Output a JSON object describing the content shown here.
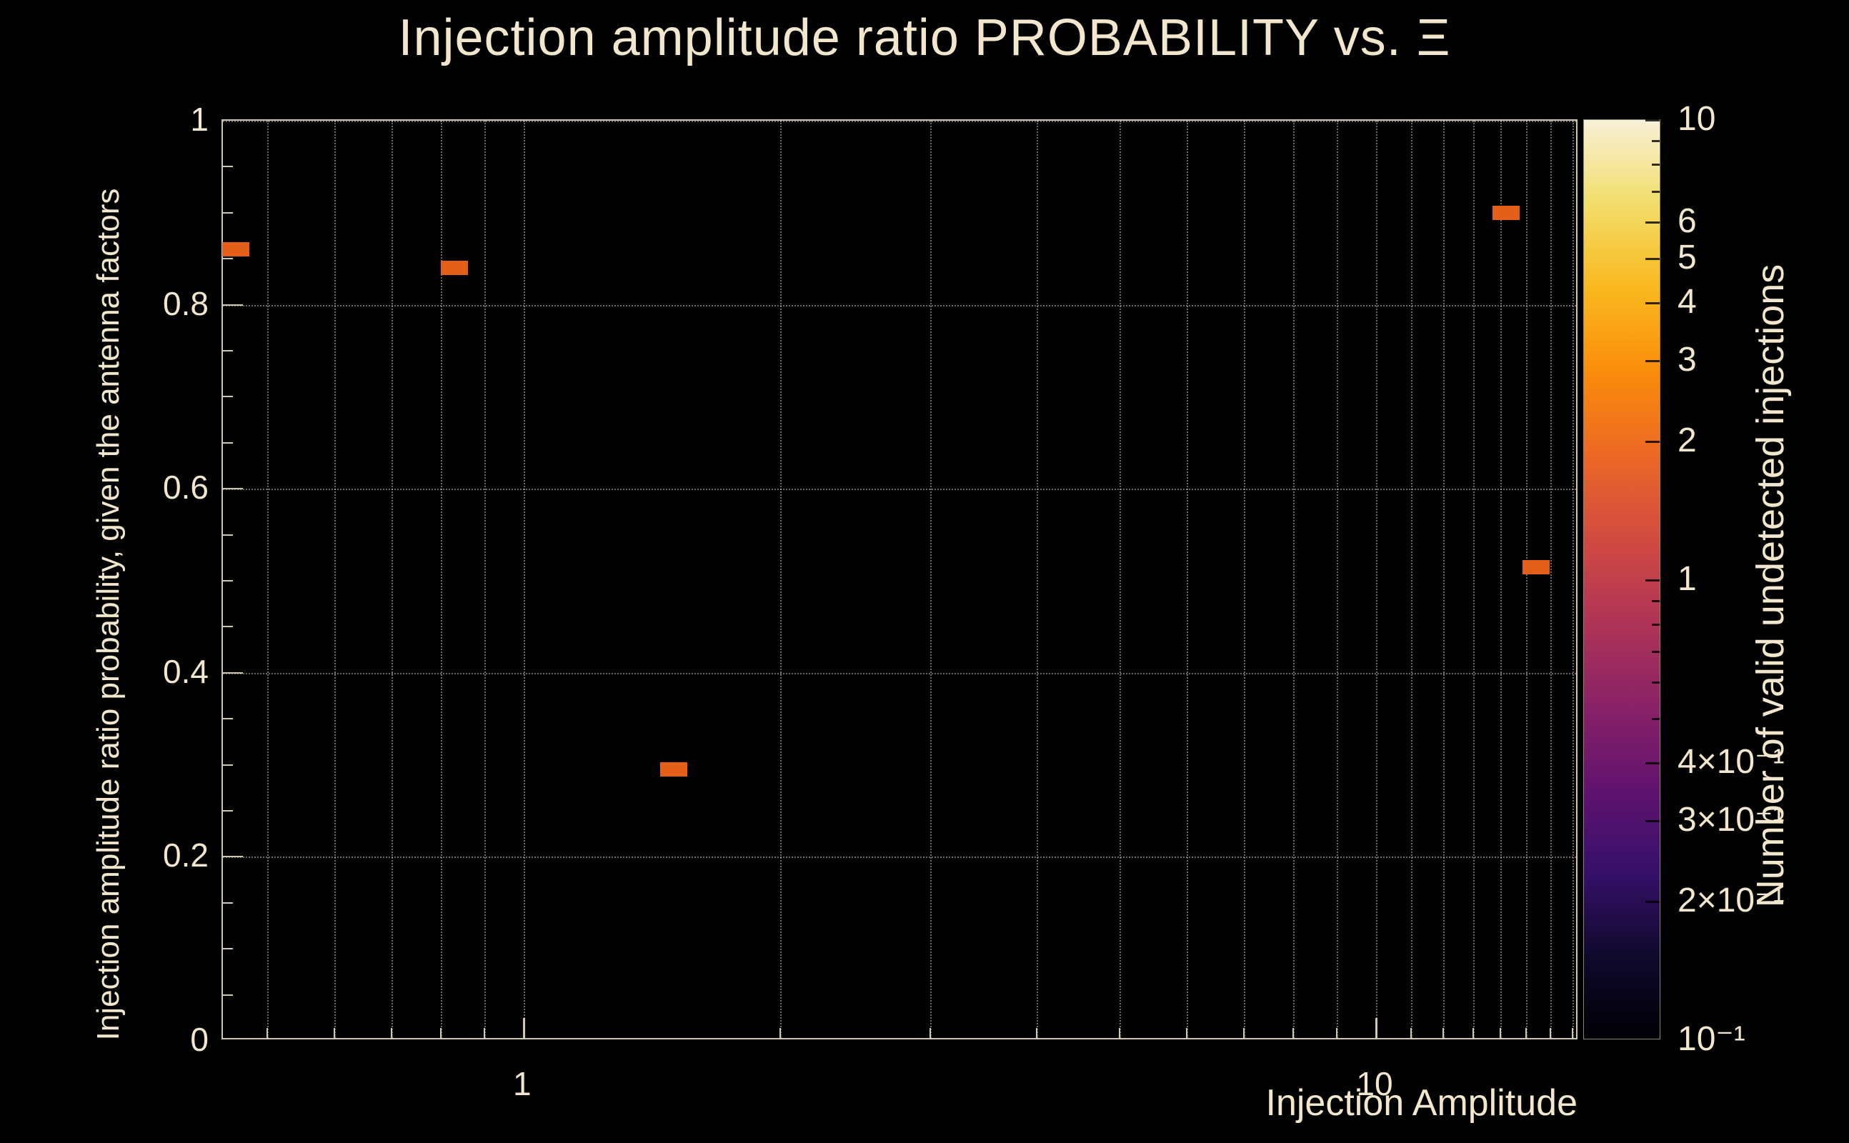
{
  "colors": {
    "background": "#000000",
    "text": "#f2e7cc",
    "point": "#e4601a",
    "grid": "#d8d2c0",
    "frame": "#cfc7ae"
  },
  "chart_data": {
    "type": "scatter",
    "title": "Injection amplitude ratio PROBABILITY vs.  Ξ",
    "xlabel": "Injection Amplitude",
    "ylabel": "Injection amplitude ratio probability, given the antenna factors",
    "x_scale": "log",
    "y_scale": "linear",
    "xlim": [
      0.444,
      17.3
    ],
    "ylim": [
      0,
      1
    ],
    "grid": true,
    "x_tick_labels": [
      {
        "v": 1,
        "label": "1"
      },
      {
        "v": 10,
        "label": "10"
      }
    ],
    "x_minor_ticks": [
      0.5,
      0.6,
      0.7,
      0.8,
      0.9,
      2,
      3,
      4,
      5,
      6,
      7,
      8,
      9,
      11,
      12,
      13,
      14,
      15,
      16,
      17
    ],
    "y_tick_labels": [
      {
        "v": 0,
        "label": "0"
      },
      {
        "v": 0.2,
        "label": "0.2"
      },
      {
        "v": 0.4,
        "label": "0.4"
      },
      {
        "v": 0.6,
        "label": "0.6"
      },
      {
        "v": 0.8,
        "label": "0.8"
      },
      {
        "v": 1,
        "label": "1"
      }
    ],
    "y_grid": [
      0.2,
      0.4,
      0.6,
      0.8,
      1.0
    ],
    "points": [
      {
        "x": 0.46,
        "y": 0.86,
        "count": 1
      },
      {
        "x": 0.83,
        "y": 0.84,
        "count": 1
      },
      {
        "x": 1.5,
        "y": 0.295,
        "count": 1
      },
      {
        "x": 14.2,
        "y": 0.9,
        "count": 1
      },
      {
        "x": 15.4,
        "y": 0.515,
        "count": 1
      }
    ],
    "colorbar": {
      "label": "Number of valid undetected injections",
      "scale": "log",
      "range": [
        0.1,
        10
      ],
      "ticks": [
        {
          "v": 10,
          "label": "10"
        },
        {
          "v": 6,
          "label": "6"
        },
        {
          "v": 5,
          "label": "5"
        },
        {
          "v": 4,
          "label": "4"
        },
        {
          "v": 3,
          "label": "3"
        },
        {
          "v": 2,
          "label": "2"
        },
        {
          "v": 1,
          "label": "1"
        },
        {
          "v": 0.4,
          "label": "4×10⁻¹"
        },
        {
          "v": 0.3,
          "label": "3×10⁻¹"
        },
        {
          "v": 0.2,
          "label": "2×10⁻¹"
        },
        {
          "v": 0.1,
          "label": "10⁻¹"
        }
      ],
      "minor_ticks": [
        9,
        8,
        7,
        0.9,
        0.8,
        0.7,
        0.6,
        0.5
      ],
      "colormap": [
        "#000004",
        "#10092d",
        "#36106b",
        "#61136e",
        "#8a2267",
        "#b03456",
        "#d24b41",
        "#ec6825",
        "#fa8d0a",
        "#f9b81f",
        "#f2dd6a",
        "#f8f1d8"
      ]
    }
  }
}
